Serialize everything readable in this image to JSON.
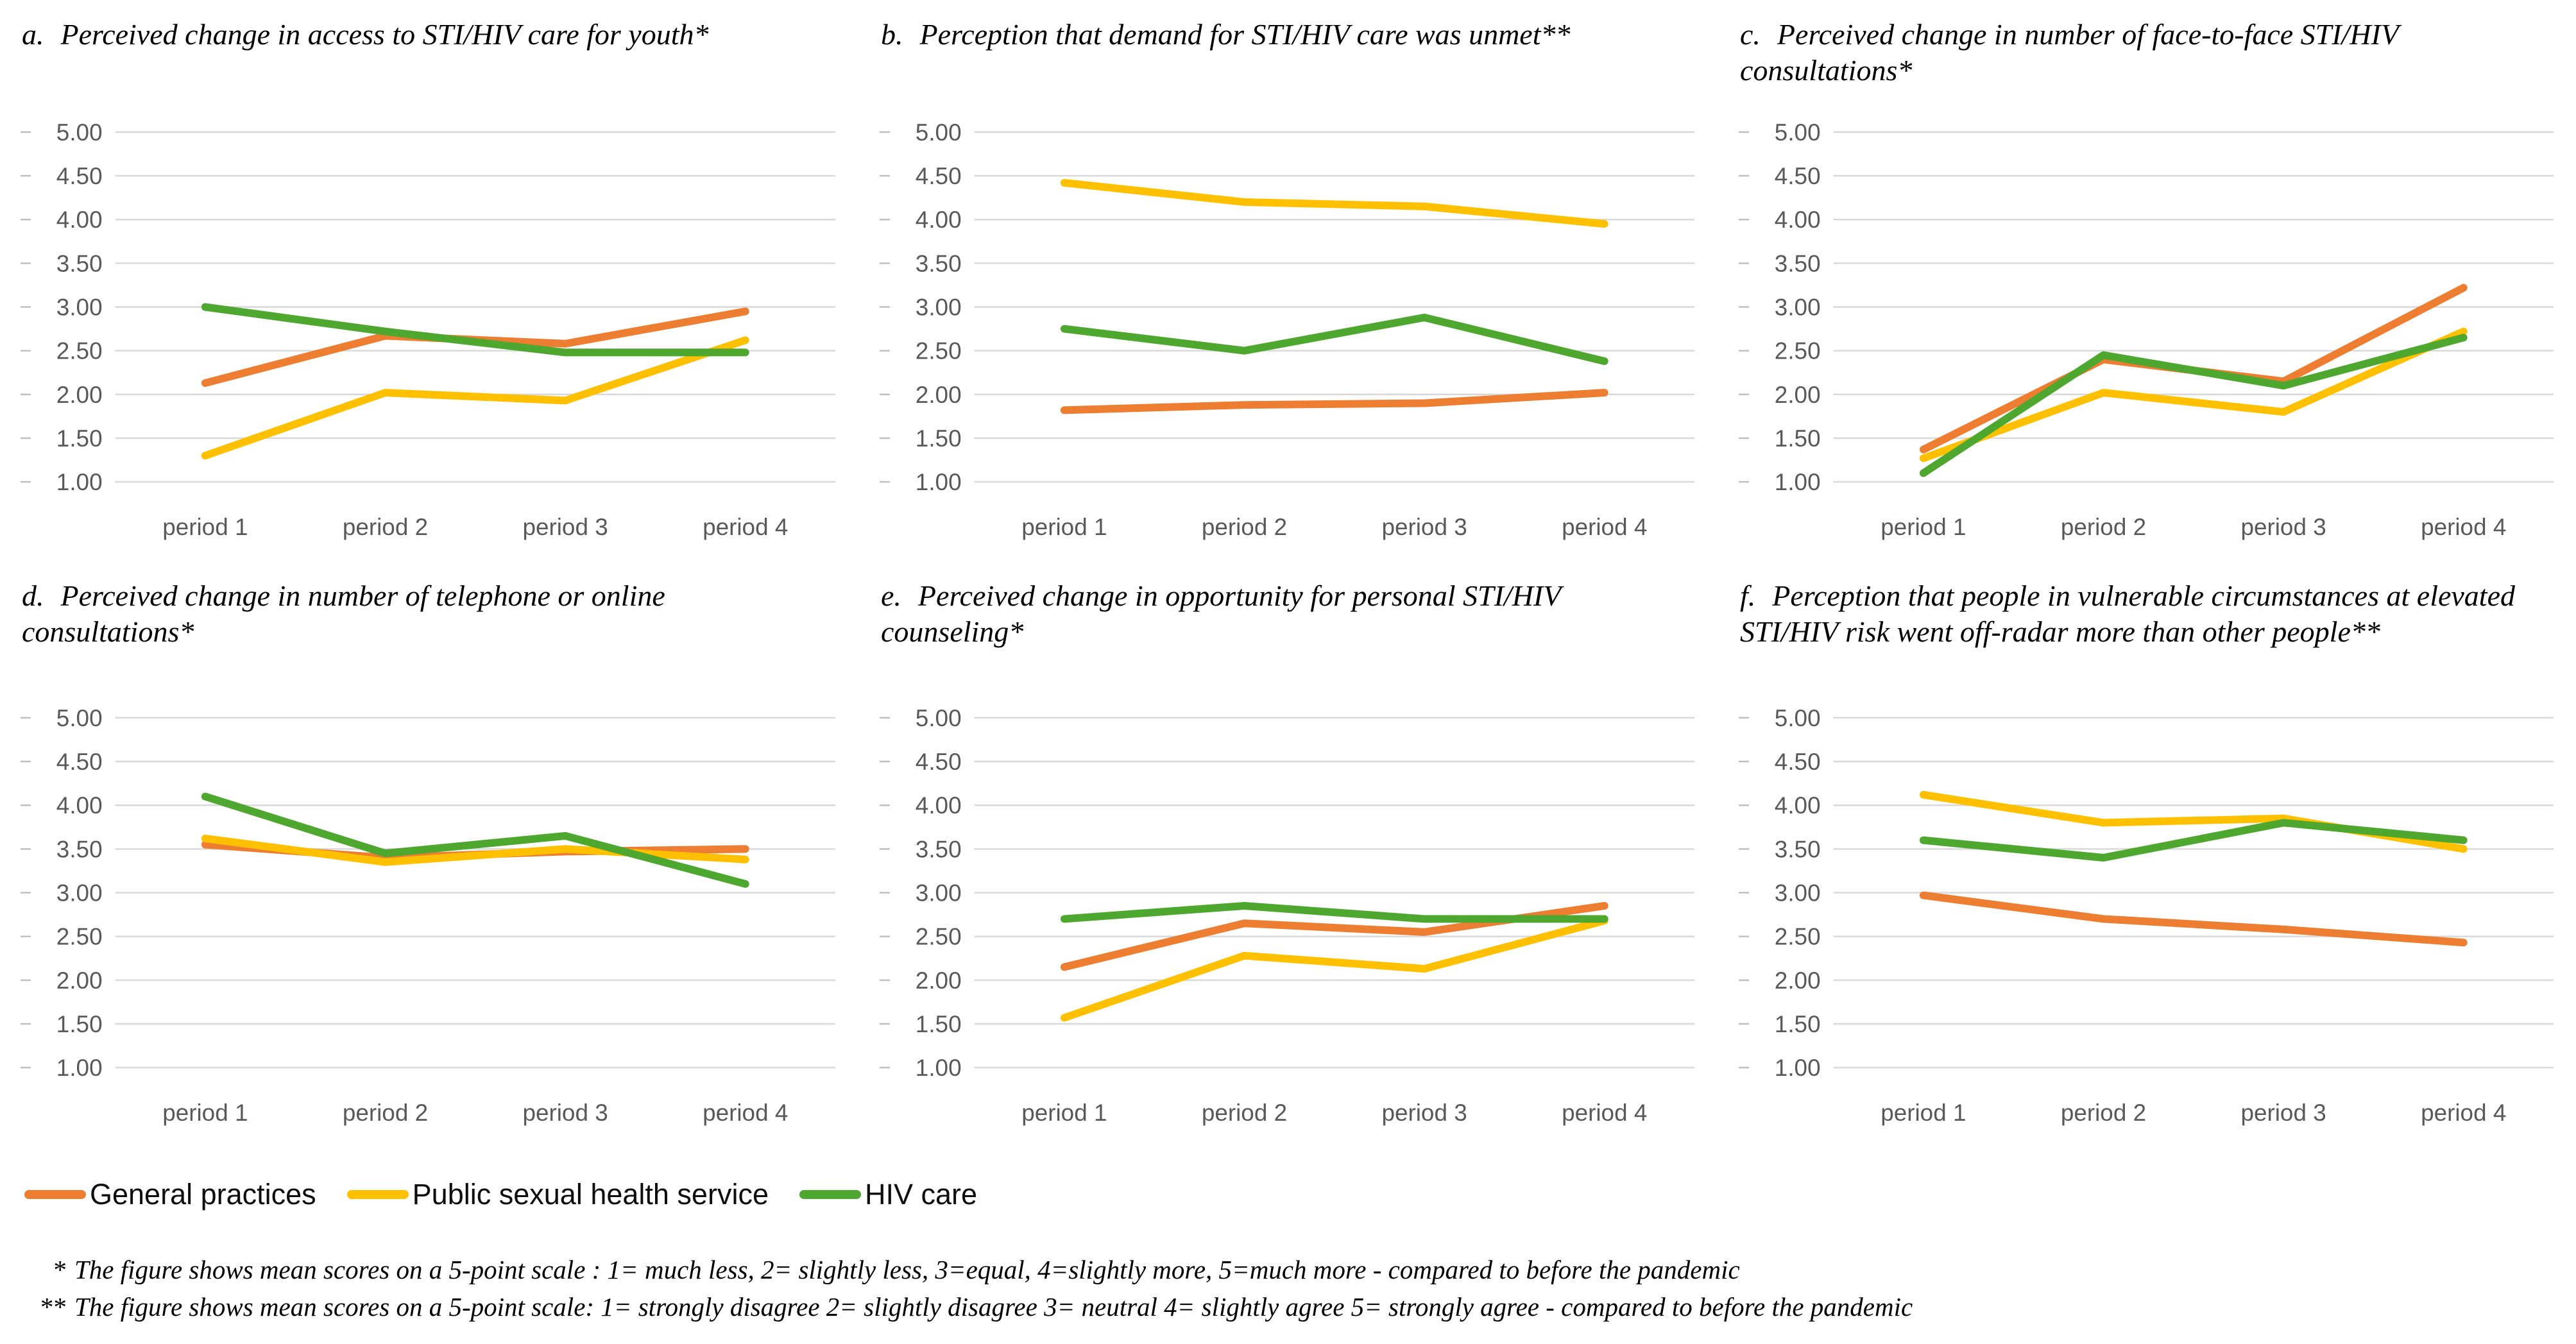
{
  "chart_data": [
    {
      "type": "line",
      "panel": "a.",
      "title": "Perceived change in access to STI/HIV care for youth*",
      "categories": [
        "period 1",
        "period 2",
        "period 3",
        "period 4"
      ],
      "ylim": [
        1.0,
        5.0
      ],
      "ytick_step": 0.5,
      "grid": true,
      "series": [
        {
          "name": "General practices",
          "color": "#ED7D31",
          "values": [
            2.13,
            2.67,
            2.58,
            2.95
          ]
        },
        {
          "name": "Public sexual health service",
          "color": "#FFC000",
          "values": [
            1.3,
            2.02,
            1.93,
            2.62
          ]
        },
        {
          "name": "HIV care",
          "color": "#4EA72E",
          "values": [
            3.0,
            2.72,
            2.48,
            2.48
          ]
        }
      ]
    },
    {
      "type": "line",
      "panel": "b.",
      "title": "Perception that demand for STI/HIV care was unmet**",
      "categories": [
        "period 1",
        "period 2",
        "period 3",
        "period 4"
      ],
      "ylim": [
        1.0,
        5.0
      ],
      "ytick_step": 0.5,
      "grid": true,
      "series": [
        {
          "name": "General practices",
          "color": "#ED7D31",
          "values": [
            1.82,
            1.88,
            1.9,
            2.02
          ]
        },
        {
          "name": "Public sexual health service",
          "color": "#FFC000",
          "values": [
            4.42,
            4.2,
            4.15,
            3.95
          ]
        },
        {
          "name": "HIV care",
          "color": "#4EA72E",
          "values": [
            2.75,
            2.5,
            2.88,
            2.38
          ]
        }
      ]
    },
    {
      "type": "line",
      "panel": "c.",
      "title": "Perceived change in number of face-to-face STI/HIV consultations*",
      "categories": [
        "period 1",
        "period 2",
        "period 3",
        "period 4"
      ],
      "ylim": [
        1.0,
        5.0
      ],
      "ytick_step": 0.5,
      "grid": true,
      "series": [
        {
          "name": "General practices",
          "color": "#ED7D31",
          "values": [
            1.37,
            2.4,
            2.15,
            3.22
          ]
        },
        {
          "name": "Public sexual health service",
          "color": "#FFC000",
          "values": [
            1.27,
            2.02,
            1.8,
            2.72
          ]
        },
        {
          "name": "HIV care",
          "color": "#4EA72E",
          "values": [
            1.1,
            2.45,
            2.1,
            2.65
          ]
        }
      ]
    },
    {
      "type": "line",
      "panel": "d.",
      "title": "Perceived change in number of telephone or online consultations*",
      "categories": [
        "period 1",
        "period 2",
        "period 3",
        "period 4"
      ],
      "ylim": [
        1.0,
        5.0
      ],
      "ytick_step": 0.5,
      "grid": true,
      "series": [
        {
          "name": "General practices",
          "color": "#ED7D31",
          "values": [
            3.55,
            3.4,
            3.47,
            3.5
          ]
        },
        {
          "name": "Public sexual health service",
          "color": "#FFC000",
          "values": [
            3.62,
            3.35,
            3.5,
            3.38
          ]
        },
        {
          "name": "HIV care",
          "color": "#4EA72E",
          "values": [
            4.1,
            3.45,
            3.65,
            3.1
          ]
        }
      ]
    },
    {
      "type": "line",
      "panel": "e.",
      "title": "Perceived change in opportunity for personal STI/HIV counseling*",
      "categories": [
        "period 1",
        "period 2",
        "period 3",
        "period 4"
      ],
      "ylim": [
        1.0,
        5.0
      ],
      "ytick_step": 0.5,
      "grid": true,
      "series": [
        {
          "name": "General practices",
          "color": "#ED7D31",
          "values": [
            2.15,
            2.65,
            2.55,
            2.85
          ]
        },
        {
          "name": "Public sexual health service",
          "color": "#FFC000",
          "values": [
            1.57,
            2.28,
            2.13,
            2.68
          ]
        },
        {
          "name": "HIV care",
          "color": "#4EA72E",
          "values": [
            2.7,
            2.85,
            2.7,
            2.7
          ]
        }
      ]
    },
    {
      "type": "line",
      "panel": "f.",
      "title": "Perception that people in vulnerable circumstances at elevated STI/HIV risk went off-radar more than other people**",
      "categories": [
        "period 1",
        "period 2",
        "period 3",
        "period 4"
      ],
      "ylim": [
        1.0,
        5.0
      ],
      "ytick_step": 0.5,
      "grid": true,
      "series": [
        {
          "name": "General practices",
          "color": "#ED7D31",
          "values": [
            2.97,
            2.7,
            2.58,
            2.43
          ]
        },
        {
          "name": "Public sexual health service",
          "color": "#FFC000",
          "values": [
            4.12,
            3.8,
            3.85,
            3.5
          ]
        },
        {
          "name": "HIV care",
          "color": "#4EA72E",
          "values": [
            3.6,
            3.4,
            3.8,
            3.6
          ]
        }
      ]
    }
  ],
  "legend": {
    "items": [
      {
        "label": "General practices",
        "color": "#ED7D31"
      },
      {
        "label": "Public sexual health service",
        "color": "#FFC000"
      },
      {
        "label": "HIV care",
        "color": "#4EA72E"
      }
    ]
  },
  "footnotes": [
    {
      "marker": "*",
      "text": "The figure shows mean scores on a 5-point scale : 1= much less, 2= slightly less, 3=equal, 4=slightly more, 5=much more - compared to before the pandemic"
    },
    {
      "marker": "**",
      "text": "The figure shows mean scores on a 5-point scale: 1= strongly disagree 2= slightly disagree 3= neutral 4= slightly agree 5= strongly agree - compared to before the pandemic"
    }
  ]
}
